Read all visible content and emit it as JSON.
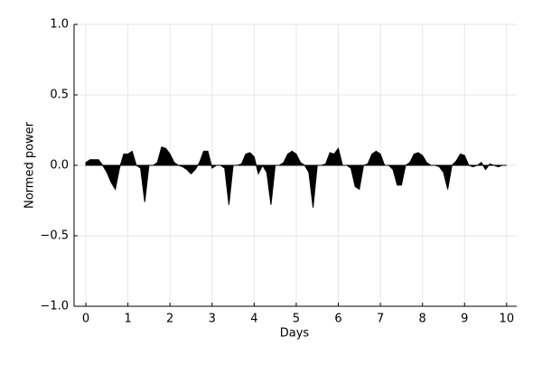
{
  "chart_data": {
    "type": "area",
    "xlabel": "Days",
    "ylabel": "Normed power",
    "x": [
      0,
      0.1,
      0.2,
      0.3,
      0.4,
      0.5,
      0.6,
      0.7,
      0.8,
      0.9,
      1,
      1.1,
      1.2,
      1.3,
      1.4,
      1.5,
      1.6,
      1.7,
      1.8,
      1.9,
      2,
      2.1,
      2.2,
      2.3,
      2.4,
      2.5,
      2.6,
      2.7,
      2.8,
      2.9,
      3,
      3.1,
      3.2,
      3.3,
      3.4,
      3.5,
      3.6,
      3.7,
      3.8,
      3.9,
      4,
      4.1,
      4.2,
      4.3,
      4.4,
      4.5,
      4.6,
      4.7,
      4.8,
      4.9,
      5,
      5.1,
      5.2,
      5.3,
      5.4,
      5.5,
      5.6,
      5.7,
      5.8,
      5.9,
      6,
      6.1,
      6.2,
      6.3,
      6.4,
      6.5,
      6.6,
      6.7,
      6.8,
      6.9,
      7,
      7.1,
      7.2,
      7.3,
      7.4,
      7.5,
      7.6,
      7.7,
      7.8,
      7.9,
      8,
      8.1,
      8.2,
      8.3,
      8.4,
      8.5,
      8.6,
      8.7,
      8.8,
      8.9,
      9,
      9.1,
      9.2,
      9.3,
      9.4,
      9.5,
      9.6,
      9.7,
      9.8,
      9.9,
      10
    ],
    "values": [
      0.02,
      0.04,
      0.04,
      0.04,
      0,
      -0.05,
      -0.12,
      -0.17,
      -0.02,
      0.08,
      0.08,
      0.1,
      0,
      -0.02,
      -0.26,
      0,
      0,
      0.02,
      0.13,
      0.12,
      0.08,
      0.02,
      0,
      -0.01,
      -0.03,
      -0.06,
      -0.03,
      0.02,
      0.1,
      0.1,
      -0.02,
      0,
      0,
      -0.02,
      -0.28,
      0,
      0,
      0.01,
      0.08,
      0.09,
      0.06,
      -0.06,
      0,
      -0.05,
      -0.28,
      0,
      0,
      0.02,
      0.08,
      0.1,
      0.08,
      0.02,
      0,
      -0.05,
      -0.3,
      0,
      0,
      0.01,
      0.09,
      0.08,
      0.12,
      0,
      0,
      -0.02,
      -0.15,
      -0.17,
      0,
      0.01,
      0.08,
      0.1,
      0.08,
      0,
      0,
      -0.03,
      -0.14,
      -0.14,
      0,
      0.02,
      0.08,
      0.09,
      0.07,
      0.02,
      0,
      0,
      -0.01,
      -0.05,
      -0.17,
      0,
      0.03,
      0.08,
      0.07,
      0,
      -0.01,
      0,
      0.02,
      -0.03,
      0.01,
      0,
      -0.01,
      0,
      0
    ],
    "color": "#000000",
    "xlim": [
      -0.28,
      10.24
    ],
    "ylim": [
      -1,
      1
    ],
    "xticks": [
      0,
      1,
      2,
      3,
      4,
      5,
      6,
      7,
      8,
      9,
      10
    ],
    "yticks": [
      {
        "value": -1,
        "label": "−1.0"
      },
      {
        "value": -0.5,
        "label": "−0.5"
      },
      {
        "value": 0,
        "label": "0.0"
      },
      {
        "value": 0.5,
        "label": "0.5"
      },
      {
        "value": 1,
        "label": "1.0"
      }
    ],
    "grid": true
  }
}
